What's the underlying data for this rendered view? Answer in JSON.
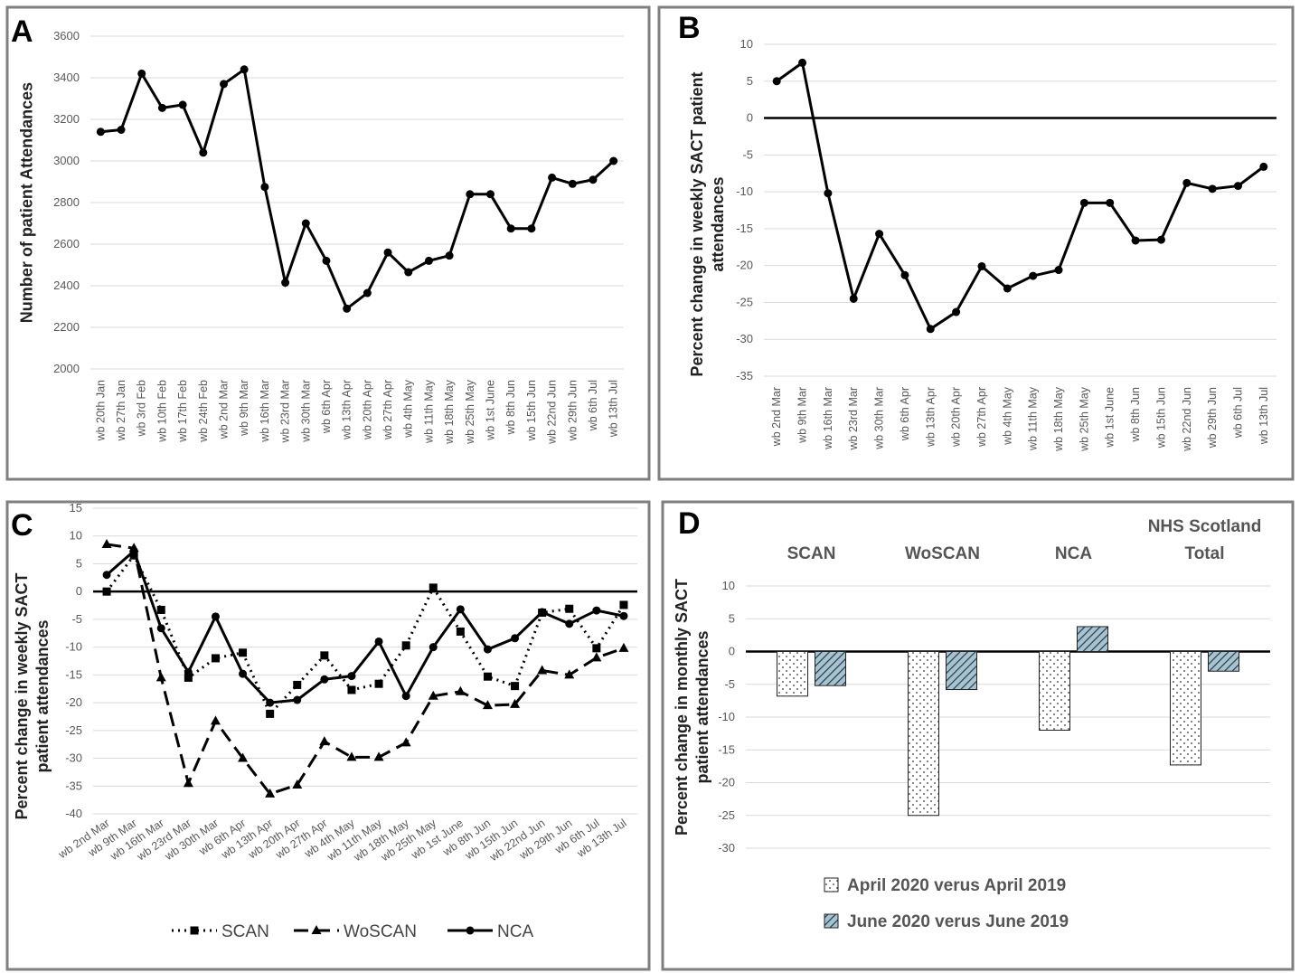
{
  "chart_data": [
    {
      "type": "line",
      "label": "A",
      "y_label": "Number of patient Attendances",
      "categories": [
        "wb 20th Jan",
        "wb 27th Jan",
        "wb 3rd Feb",
        "wb 10th Feb",
        "wb 17th Feb",
        "wb 24th Feb",
        "wb 2nd Mar",
        "wb 9th Mar",
        "wb 16th Mar",
        "wb 23rd Mar",
        "wb 30th Mar",
        "wb 6th Apr",
        "wb 13th Apr",
        "wb 20th Apr",
        "wb 27th Apr",
        "wb 4th May",
        "wb 11th May",
        "wb 18th May",
        "wb 25th May",
        "wb 1st June",
        "wb 8th Jun",
        "wb 15th Jun",
        "wb 22nd Jun",
        "wb 29th Jun",
        "wb 6th Jul",
        "wb 13th Jul"
      ],
      "values": [
        3140,
        3150,
        3420,
        3255,
        3270,
        3040,
        3370,
        3440,
        2875,
        2415,
        2700,
        2520,
        2290,
        2365,
        2560,
        2465,
        2520,
        2545,
        2840,
        2840,
        2675,
        2675,
        2920,
        2890,
        2910,
        3000
      ],
      "color": "#000000",
      "marker": "circle",
      "ylim": [
        2000,
        3600
      ],
      "yticks": [
        2000,
        2200,
        2400,
        2600,
        2800,
        3000,
        3200,
        3400,
        3600
      ],
      "grid": true,
      "zero_line": false
    },
    {
      "type": "line",
      "label": "B",
      "y_label": "Percent change in weekly SACT patient attendances",
      "categories": [
        "wb 2nd Mar",
        "wb 9th Mar",
        "wb 16th Mar",
        "wb 23rd Mar",
        "wb 30th Mar",
        "wb 6th Apr",
        "wb 13th Apr",
        "wb 20th Apr",
        "wb 27th Apr",
        "wb 4th May",
        "wb 11th May",
        "wb 18th May",
        "wb 25th May",
        "wb 1st June",
        "wb 8th Jun",
        "wb 15th Jun",
        "wb 22nd Jun",
        "wb 29th Jun",
        "wb 6th Jul",
        "wb 13th Jul"
      ],
      "values": [
        5,
        7.5,
        -10.2,
        -24.5,
        -15.7,
        -21.3,
        -28.6,
        -26.3,
        -20.1,
        -23.1,
        -21.4,
        -20.6,
        -11.5,
        -11.5,
        -16.6,
        -16.5,
        -8.8,
        -9.6,
        -9.2,
        -6.6
      ],
      "color": "#000000",
      "marker": "circle",
      "ylim": [
        -35,
        10
      ],
      "yticks": [
        -35,
        -30,
        -25,
        -20,
        -15,
        -10,
        -5,
        0,
        5,
        10
      ],
      "grid": true,
      "zero_line": true
    },
    {
      "type": "line",
      "label": "C",
      "y_label": "Percent change in weekly SACT patient attendances",
      "categories": [
        "wb 2nd Mar",
        "wb 9th Mar",
        "wb 16th Mar",
        "wb 23rd Mar",
        "wb 30th Mar",
        "wb 6th Apr",
        "wb 13th Apr",
        "wb 20th Apr",
        "wb 27th Apr",
        "wb 4th May",
        "wb 11th May",
        "wb 18th May",
        "wb 25th May",
        "wb 1st June",
        "wb 8th Jun",
        "wb 15th Jun",
        "wb 22nd Jun",
        "wb 29th Jun",
        "wb 6th Jul",
        "wb 13th Jul"
      ],
      "series": [
        {
          "name": "SCAN",
          "color": "#000000",
          "dash": "dotted",
          "marker": "square",
          "values": [
            0,
            6.5,
            -3.3,
            -15.5,
            -12,
            -11,
            -22,
            -16.8,
            -11.5,
            -17.7,
            -16.6,
            -9.7,
            0.7,
            -7.2,
            -15.3,
            -17,
            -3.8,
            -3.1,
            -10.2,
            -2.4
          ]
        },
        {
          "name": "WoSCAN",
          "color": "#000000",
          "dash": "dashed",
          "marker": "triangle",
          "values": [
            8.5,
            7.8,
            -15.5,
            -34.5,
            -23.3,
            -30,
            -36.4,
            -34.8,
            -27,
            -29.8,
            -29.8,
            -27.2,
            -18.8,
            -18,
            -20.5,
            -20.3,
            -14.2,
            -15,
            -11.9,
            -10.2
          ]
        },
        {
          "name": "NCA",
          "color": "#000000",
          "dash": "solid",
          "marker": "circle",
          "values": [
            3,
            7.3,
            -6.6,
            -14.5,
            -4.5,
            -14.8,
            -20,
            -19.5,
            -15.8,
            -15.2,
            -9,
            -18.8,
            -10,
            -3.2,
            -10.4,
            -8.4,
            -3.7,
            -5.8,
            -3.4,
            -4.4
          ]
        }
      ],
      "ylim": [
        -40,
        15
      ],
      "yticks": [
        -40,
        -35,
        -30,
        -25,
        -20,
        -15,
        -10,
        -5,
        0,
        5,
        10,
        15
      ],
      "grid": true,
      "zero_line": true,
      "legend": "bottom"
    },
    {
      "type": "bar",
      "label": "D",
      "y_label": "Percent change in monthly  SACT patient attendances",
      "categories": [
        "SCAN",
        "WoSCAN",
        "NCA",
        "NHS Scotland Total"
      ],
      "series": [
        {
          "name": "April 2020 verus April 2019",
          "color": "#ffffff",
          "pattern": "dots",
          "values": [
            -6.8,
            -25,
            -12,
            -17.3
          ]
        },
        {
          "name": "June 2020 verus June 2019",
          "color": "#a8c3cf",
          "pattern": "hatch",
          "values": [
            -5.2,
            -5.8,
            3.8,
            -3
          ]
        }
      ],
      "ylim": [
        -30,
        10
      ],
      "yticks": [
        -30,
        -25,
        -20,
        -15,
        -10,
        -5,
        0,
        5,
        10
      ],
      "grid": true,
      "zero_line": true,
      "legend": "bottom"
    }
  ]
}
